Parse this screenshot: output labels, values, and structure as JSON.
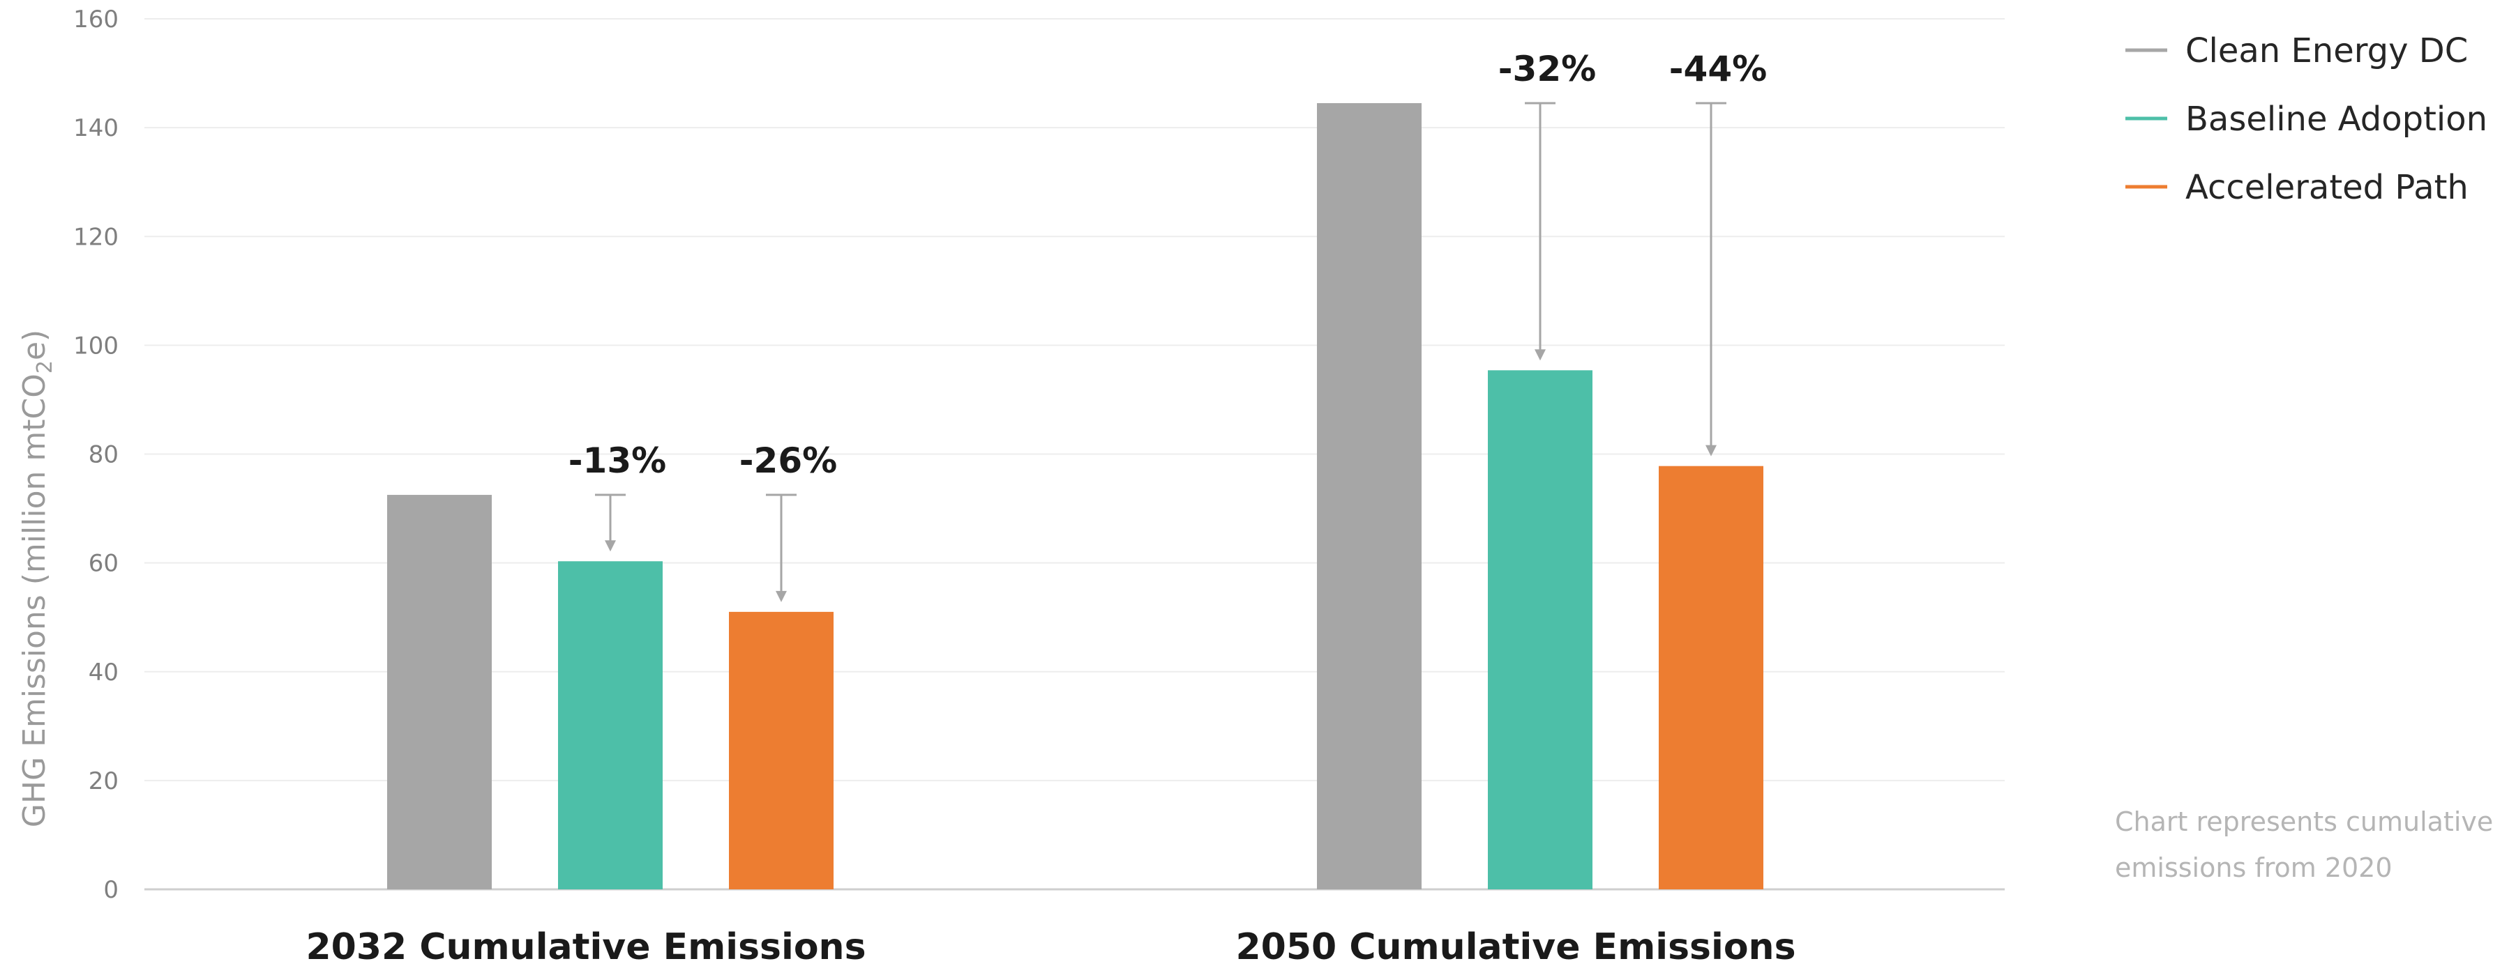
{
  "chart_data": {
    "type": "bar",
    "ylabel": "GHG Emissions (million mtCO",
    "ylabel_sub": "2",
    "ylabel_end": "e)",
    "ylim": [
      0,
      160
    ],
    "yticks": [
      0,
      20,
      40,
      60,
      80,
      100,
      120,
      140,
      160
    ],
    "grid": true,
    "categories": [
      "2032 Cumulative Emissions",
      "2050 Cumulative Emissions"
    ],
    "series": [
      {
        "name": "Clean Energy DC",
        "color": "#a6a6a6",
        "values": [
          72.5,
          144.5
        ]
      },
      {
        "name": "Baseline Adoption",
        "color": "#4dbfa8",
        "values": [
          60.3,
          95.4
        ]
      },
      {
        "name": "Accelerated Path",
        "color": "#ed7d31",
        "values": [
          51.0,
          77.8
        ]
      }
    ],
    "annotations": [
      {
        "category": 0,
        "series": 1,
        "text": "-13%"
      },
      {
        "category": 0,
        "series": 2,
        "text": "-26%"
      },
      {
        "category": 1,
        "series": 1,
        "text": "-32%"
      },
      {
        "category": 1,
        "series": 2,
        "text": "-44%"
      }
    ],
    "legend_position": "top-right",
    "note_lines": [
      "Chart represents cumulative",
      "emissions from 2020"
    ]
  }
}
